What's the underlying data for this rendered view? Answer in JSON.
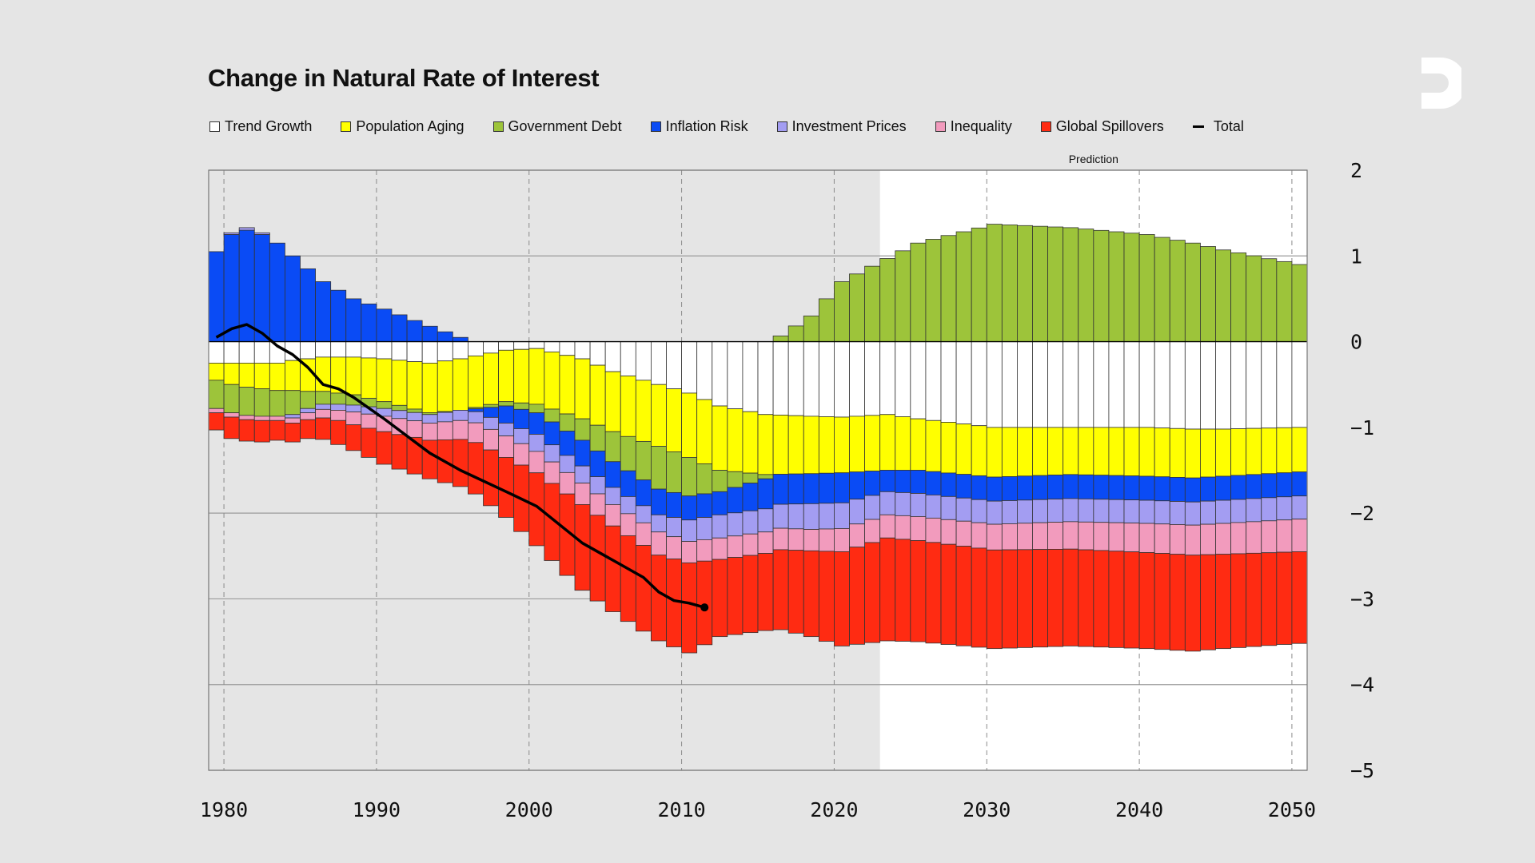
{
  "title": "Change in Natural Rate of Interest",
  "colors": {
    "background": "#e5e5e5",
    "prediction_bg": "#ffffff",
    "trend_growth": "#ffffff",
    "population_aging": "#ffff00",
    "government_debt": "#9dc43a",
    "inflation_risk": "#0a4bf5",
    "investment_prices": "#a39df2",
    "inequality": "#f29bbd",
    "global_spillovers": "#ff2b12",
    "total": "#000000"
  },
  "legend": [
    {
      "label": "Trend Growth",
      "color": "#ffffff",
      "kind": "box"
    },
    {
      "label": "Population Aging",
      "color": "#ffff00",
      "kind": "box"
    },
    {
      "label": "Government Debt",
      "color": "#9dc43a",
      "kind": "box"
    },
    {
      "label": "Inflation Risk",
      "color": "#0a4bf5",
      "kind": "box"
    },
    {
      "label": "Investment Prices",
      "color": "#a39df2",
      "kind": "box"
    },
    {
      "label": "Inequality",
      "color": "#f29bbd",
      "kind": "box"
    },
    {
      "label": "Global Spillovers",
      "color": "#ff2b12",
      "kind": "box"
    },
    {
      "label": "Total",
      "color": "#000000",
      "kind": "line"
    }
  ],
  "chart_data": {
    "type": "bar",
    "stacked": true,
    "title": "Change in Natural Rate of Interest",
    "xlabel": "",
    "ylabel": "",
    "xlim": [
      1979,
      2051
    ],
    "ylim": [
      -5,
      2
    ],
    "x_ticks": [
      1980,
      1990,
      2000,
      2010,
      2020,
      2030,
      2040,
      2050
    ],
    "y_ticks": [
      2,
      1,
      0,
      -1,
      -2,
      -3,
      -4,
      -5
    ],
    "y_tick_labels": [
      "2",
      "1",
      "0",
      "−1",
      "−2",
      "−3",
      "−4",
      "−5"
    ],
    "y_axis_side": "right",
    "prediction_start": 2023,
    "prediction_label": "Prediction",
    "key_years": [
      1979,
      1980,
      1981,
      1982,
      1983,
      1984,
      1985,
      1986,
      1987,
      1988,
      1990,
      1993,
      1995,
      1998,
      2000,
      2003,
      2005,
      2008,
      2010,
      2012,
      2015,
      2018,
      2020,
      2023,
      2025,
      2030,
      2035,
      2040,
      2043,
      2045,
      2050
    ],
    "series": [
      {
        "name": "Trend Growth",
        "color": "#ffffff",
        "values": [
          -0.25,
          -0.25,
          -0.25,
          -0.25,
          -0.25,
          -0.22,
          -0.2,
          -0.18,
          -0.18,
          -0.18,
          -0.2,
          -0.25,
          -0.2,
          -0.1,
          -0.08,
          -0.2,
          -0.35,
          -0.5,
          -0.6,
          -0.75,
          -0.85,
          -0.87,
          -0.88,
          -0.85,
          -0.9,
          -1.0,
          -1.0,
          -1.0,
          -1.02,
          -1.02,
          -1.0
        ]
      },
      {
        "name": "Population Aging",
        "color": "#ffff00",
        "values": [
          -0.2,
          -0.25,
          -0.28,
          -0.3,
          -0.32,
          -0.35,
          -0.38,
          -0.4,
          -0.42,
          -0.44,
          -0.5,
          -0.58,
          -0.6,
          -0.6,
          -0.65,
          -0.7,
          -0.7,
          -0.72,
          -0.75,
          -0.75,
          -0.7,
          -0.67,
          -0.65,
          -0.65,
          -0.6,
          -0.58,
          -0.55,
          -0.57,
          -0.57,
          -0.55,
          -0.52
        ]
      },
      {
        "name": "Government Debt",
        "color": "#9dc43a",
        "values": [
          -0.33,
          -0.33,
          -0.33,
          -0.32,
          -0.3,
          -0.28,
          -0.2,
          -0.15,
          -0.13,
          -0.12,
          -0.08,
          -0.02,
          0.0,
          -0.05,
          -0.1,
          -0.25,
          -0.35,
          -0.5,
          -0.45,
          -0.25,
          -0.05,
          0.3,
          0.7,
          0.97,
          1.15,
          1.37,
          1.33,
          1.25,
          1.15,
          1.07,
          0.9
        ]
      },
      {
        "name": "Inflation Risk",
        "color": "#0a4bf5",
        "values": [
          1.05,
          1.25,
          1.3,
          1.25,
          1.15,
          1.0,
          0.85,
          0.7,
          0.6,
          0.5,
          0.38,
          0.18,
          0.05,
          -0.2,
          -0.25,
          -0.3,
          -0.3,
          -0.3,
          -0.28,
          -0.27,
          -0.35,
          -0.35,
          -0.35,
          -0.25,
          -0.27,
          -0.28,
          -0.28,
          -0.28,
          -0.28,
          -0.28,
          -0.28
        ]
      },
      {
        "name": "Investment Prices",
        "color": "#a39df2",
        "values": [
          0.0,
          0.02,
          0.03,
          0.02,
          0.0,
          -0.04,
          -0.05,
          -0.06,
          -0.07,
          -0.08,
          -0.09,
          -0.1,
          -0.12,
          -0.15,
          -0.2,
          -0.2,
          -0.2,
          -0.2,
          -0.25,
          -0.27,
          -0.27,
          -0.3,
          -0.3,
          -0.27,
          -0.27,
          -0.27,
          -0.27,
          -0.27,
          -0.27,
          -0.27,
          -0.27
        ]
      },
      {
        "name": "Inequality",
        "color": "#f29bbd",
        "values": [
          -0.05,
          -0.05,
          -0.05,
          -0.05,
          -0.05,
          -0.06,
          -0.08,
          -0.1,
          -0.12,
          -0.15,
          -0.18,
          -0.2,
          -0.22,
          -0.25,
          -0.25,
          -0.25,
          -0.25,
          -0.27,
          -0.25,
          -0.25,
          -0.25,
          -0.25,
          -0.27,
          -0.27,
          -0.28,
          -0.3,
          -0.32,
          -0.34,
          -0.35,
          -0.36,
          -0.38
        ]
      },
      {
        "name": "Global Spillovers",
        "color": "#ff2b12",
        "values": [
          -0.2,
          -0.25,
          -0.25,
          -0.25,
          -0.23,
          -0.22,
          -0.22,
          -0.25,
          -0.28,
          -0.3,
          -0.38,
          -0.45,
          -0.55,
          -0.7,
          -0.85,
          -1.0,
          -1.0,
          -1.0,
          -1.05,
          -0.9,
          -0.9,
          -1.0,
          -1.1,
          -1.2,
          -1.18,
          -1.15,
          -1.13,
          -1.12,
          -1.12,
          -1.1,
          -1.07
        ]
      },
      {
        "name": "Total",
        "color": "#000000",
        "type": "line",
        "x": [
          1979,
          1980,
          1981,
          1982,
          1983,
          1984,
          1985,
          1986,
          1987,
          1988,
          1990,
          1993,
          1995,
          1998,
          2000,
          2003,
          2005,
          2007,
          2008,
          2009,
          2010,
          2011
        ],
        "values": [
          0.05,
          0.15,
          0.2,
          0.1,
          -0.05,
          -0.15,
          -0.3,
          -0.5,
          -0.55,
          -0.65,
          -0.9,
          -1.3,
          -1.5,
          -1.75,
          -1.92,
          -2.35,
          -2.55,
          -2.75,
          -2.92,
          -3.02,
          -3.05,
          -3.1
        ]
      }
    ]
  }
}
